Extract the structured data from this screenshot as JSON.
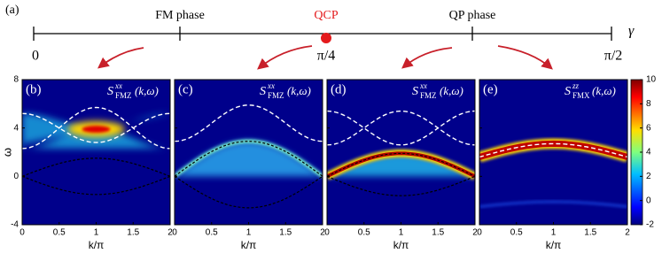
{
  "figure_label": "(a)",
  "phase_axis": {
    "start": "0",
    "critical_position": "π/4",
    "end": "π/2",
    "symbol": "γ",
    "phases": [
      "FM phase",
      "QP phase"
    ],
    "critical": "QCP"
  },
  "panels": [
    {
      "label": "(b)",
      "quantity": "S",
      "superscript": "xx",
      "subscript": "FMZ",
      "argument": "(k,ω)"
    },
    {
      "label": "(c)",
      "quantity": "S",
      "superscript": "xx",
      "subscript": "FMZ",
      "argument": "(k,ω)"
    },
    {
      "label": "(d)",
      "quantity": "S",
      "superscript": "xx",
      "subscript": "FMZ",
      "argument": "(k,ω)"
    },
    {
      "label": "(e)",
      "quantity": "S",
      "superscript": "zz",
      "subscript": "FMX",
      "argument": "(k,ω)"
    }
  ],
  "x_label": "k/π",
  "y_label": "ω",
  "xlim": [
    0,
    2
  ],
  "xticks": [
    0,
    0.5,
    1,
    1.5,
    2
  ],
  "ylim": [
    -4,
    8
  ],
  "yticks": [
    -4,
    0,
    4,
    8
  ],
  "colorbar": {
    "lim": [
      -2,
      10
    ],
    "ticks": [
      -2,
      0,
      2,
      4,
      6,
      8,
      10
    ]
  }
}
